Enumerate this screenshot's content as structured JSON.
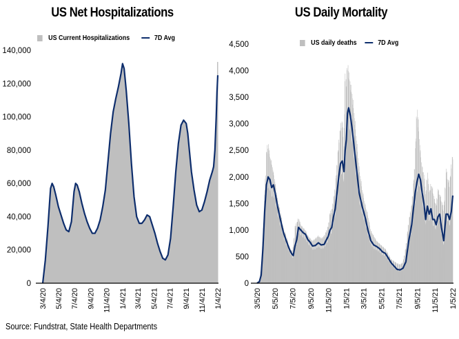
{
  "source": "Source: Fundstrat, State Health Departments",
  "chart_data": [
    {
      "type": "area",
      "title": "US Net Hospitalizations",
      "legend": {
        "bar_label": "US Current Hospitalizations",
        "line_label": "7D Avg",
        "position": "top"
      },
      "colors": {
        "bars": "#bfbfbf",
        "line": "#0d2d6c"
      },
      "xlabel": "",
      "ylabel": "",
      "ylim": [
        0,
        140000
      ],
      "yticks": [
        0,
        20000,
        40000,
        60000,
        80000,
        100000,
        120000,
        140000
      ],
      "ytick_labels": [
        "0",
        "20,000",
        "40,000",
        "60,000",
        "80,000",
        "100,000",
        "120,000",
        "140,000"
      ],
      "xlim": [
        "2020-03-04",
        "2022-01-04"
      ],
      "xticks": [
        "3/4/20",
        "5/4/20",
        "7/4/20",
        "9/4/20",
        "11/4/20",
        "1/4/21",
        "3/4/21",
        "5/4/21",
        "7/4/21",
        "9/4/21",
        "11/4/21",
        "1/4/22"
      ],
      "xtick_days": [
        0,
        61,
        122,
        184,
        245,
        306,
        365,
        426,
        487,
        549,
        610,
        671
      ],
      "series": [
        {
          "name": "7D Avg",
          "day": [
            0,
            10,
            20,
            30,
            36,
            42,
            50,
            60,
            70,
            80,
            90,
            100,
            110,
            120,
            126,
            132,
            140,
            150,
            160,
            170,
            180,
            190,
            200,
            210,
            220,
            230,
            240,
            250,
            260,
            270,
            280,
            290,
            300,
            306,
            312,
            320,
            330,
            340,
            350,
            360,
            370,
            380,
            390,
            400,
            410,
            420,
            430,
            440,
            450,
            460,
            470,
            480,
            490,
            500,
            510,
            520,
            530,
            540,
            550,
            556,
            562,
            570,
            580,
            590,
            600,
            610,
            620,
            630,
            640,
            650,
            655,
            660,
            665,
            668,
            671
          ],
          "values": [
            0,
            14000,
            34000,
            57000,
            60000,
            58000,
            53000,
            46000,
            41000,
            36000,
            32000,
            31000,
            37000,
            55000,
            60000,
            59000,
            55000,
            48000,
            42000,
            37000,
            33000,
            30000,
            30000,
            33000,
            38000,
            46000,
            56000,
            73000,
            90000,
            103000,
            111000,
            118000,
            126000,
            132000,
            129000,
            116000,
            96000,
            72000,
            52000,
            40000,
            36000,
            36000,
            38000,
            41000,
            40000,
            35000,
            30000,
            24000,
            19000,
            15000,
            14000,
            17000,
            27000,
            46000,
            67000,
            84000,
            95000,
            98000,
            96000,
            90000,
            80000,
            67000,
            56000,
            47000,
            43000,
            44000,
            49000,
            55000,
            62000,
            67000,
            70000,
            80000,
            100000,
            115000,
            125000
          ],
          "bar_last": 133000
        }
      ]
    },
    {
      "type": "bar",
      "title": "US Daily Mortality",
      "legend": {
        "bar_label": "US daily deaths",
        "line_label": "7D Avg",
        "position": "top"
      },
      "colors": {
        "bars": "#bfbfbf",
        "line": "#0d2d6c"
      },
      "xlabel": "",
      "ylabel": "",
      "ylim": [
        0,
        4500
      ],
      "yticks": [
        0,
        500,
        1000,
        1500,
        2000,
        2500,
        3000,
        3500,
        4000,
        4500
      ],
      "ytick_labels": [
        "0",
        "500",
        "1,000",
        "1,500",
        "2,000",
        "2,500",
        "3,000",
        "3,500",
        "4,000",
        "4,500"
      ],
      "xlim": [
        "2020-03-05",
        "2022-01-05"
      ],
      "xticks": [
        "3/5/20",
        "5/5/20",
        "7/5/20",
        "9/5/20",
        "11/5/20",
        "1/5/21",
        "3/5/21",
        "5/5/21",
        "7/5/21",
        "9/5/21",
        "11/5/21",
        "1/5/22"
      ],
      "xtick_days": [
        0,
        61,
        122,
        184,
        245,
        306,
        365,
        426,
        487,
        549,
        610,
        671
      ],
      "series": [
        {
          "name": "7D Avg",
          "day": [
            0,
            8,
            14,
            20,
            26,
            32,
            38,
            44,
            50,
            56,
            62,
            70,
            80,
            90,
            100,
            110,
            118,
            124,
            130,
            136,
            142,
            150,
            158,
            166,
            174,
            182,
            190,
            200,
            210,
            220,
            230,
            238,
            244,
            250,
            256,
            262,
            268,
            274,
            280,
            286,
            292,
            298,
            302,
            306,
            310,
            314,
            320,
            326,
            332,
            340,
            350,
            360,
            370,
            380,
            390,
            400,
            410,
            420,
            430,
            440,
            450,
            460,
            470,
            480,
            490,
            500,
            510,
            520,
            530,
            536,
            542,
            548,
            554,
            560,
            566,
            572,
            578,
            584,
            590,
            596,
            602,
            608,
            614,
            620,
            626,
            632,
            640,
            648,
            654,
            660,
            666,
            671
          ],
          "values": [
            0,
            30,
            150,
            650,
            1350,
            1850,
            2000,
            1950,
            1800,
            1850,
            1700,
            1450,
            1200,
            960,
            800,
            650,
            560,
            520,
            700,
            820,
            1050,
            1000,
            950,
            920,
            820,
            770,
            700,
            710,
            760,
            720,
            730,
            820,
            880,
            1000,
            1050,
            1250,
            1400,
            1700,
            2000,
            2250,
            2300,
            2100,
            2500,
            2700,
            3200,
            3300,
            3150,
            2900,
            2600,
            2200,
            1700,
            1450,
            1250,
            1000,
            800,
            720,
            690,
            650,
            590,
            560,
            470,
            380,
            320,
            260,
            250,
            280,
            400,
            800,
            1100,
            1400,
            1700,
            1900,
            2050,
            1950,
            1700,
            1500,
            1200,
            1450,
            1300,
            1400,
            1200,
            1200,
            1100,
            1250,
            1300,
            1050,
            800,
            1300,
            1300,
            1200,
            1350,
            1650
          ],
          "daily": [
            0,
            50,
            300,
            900,
            1700,
            2500,
            2700,
            2400,
            2300,
            2100,
            1900,
            1600,
            1350,
            1050,
            900,
            700,
            600,
            700,
            1100,
            1150,
            1250,
            1100,
            1050,
            1000,
            900,
            850,
            800,
            850,
            900,
            850,
            900,
            1000,
            1100,
            1350,
            1400,
            1600,
            1850,
            2300,
            2700,
            3000,
            3100,
            2600,
            4200,
            3800,
            4300,
            4000,
            3800,
            3600,
            3300,
            2800,
            2200,
            1800,
            1500,
            1300,
            1000,
            900,
            800,
            750,
            700,
            650,
            550,
            450,
            420,
            380,
            360,
            400,
            700,
            1200,
            1500,
            1900,
            2400,
            3500,
            3000,
            2500,
            2200,
            2100,
            1700,
            2200,
            1700,
            1900,
            1800,
            1600,
            1500,
            1800,
            1700,
            1600,
            1400,
            2200,
            2000,
            1900,
            2300,
            2500
          ]
        }
      ]
    }
  ]
}
